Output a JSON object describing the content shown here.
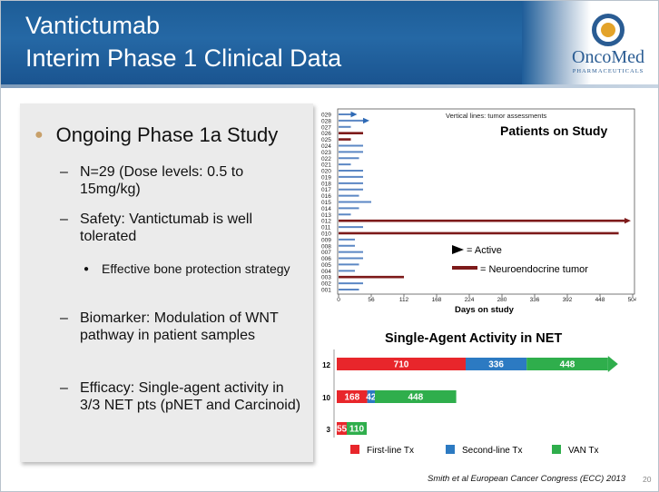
{
  "header": {
    "title_line1": "Vantictumab",
    "title_line2": "Interim Phase 1 Clinical Data"
  },
  "logo": {
    "name": "OncoMed",
    "sub": "PHARMACEUTICALS"
  },
  "bullets": {
    "main": "Ongoing Phase 1a Study",
    "n": "N=29 (Dose levels: 0.5 to 15mg/kg)",
    "safety": "Safety: Vantictumab is well tolerated",
    "bone": "Effective bone protection strategy",
    "biomarker": "Biomarker: Modulation of WNT pathway in patient samples",
    "efficacy": "Efficacy: Single-agent activity in 3/3 NET pts (pNET and Carcinoid)"
  },
  "footer": {
    "citation": "Smith et al European Cancer Congress (ECC) 2013",
    "page": "20"
  },
  "colors": {
    "blue_bar": "#5b87c4",
    "neuro_bar": "#7d1a1a",
    "first_line": "#e8262b",
    "second_line": "#2c7ac2",
    "van_tx": "#2fae4c"
  },
  "chart_data": [
    {
      "type": "bar",
      "title": "Patients on Study",
      "annotation": "Vertical lines: tumor assessments",
      "xlabel": "Days on study",
      "xlim": [
        0,
        504
      ],
      "xticks": [
        "0",
        "56",
        "112",
        "168",
        "224",
        "280",
        "336",
        "392",
        "448",
        "504"
      ],
      "categories": [
        "029",
        "028",
        "027",
        "026",
        "025",
        "024",
        "023",
        "022",
        "021",
        "020",
        "019",
        "018",
        "017",
        "016",
        "015",
        "014",
        "013",
        "012",
        "011",
        "010",
        "009",
        "008",
        "007",
        "006",
        "005",
        "004",
        "003",
        "002",
        "001"
      ],
      "values": [
        21,
        42,
        21,
        42,
        21,
        42,
        42,
        35,
        21,
        42,
        42,
        42,
        42,
        35,
        56,
        35,
        21,
        490,
        42,
        480,
        28,
        28,
        42,
        42,
        35,
        28,
        112,
        42,
        35
      ],
      "neuroendocrine": [
        "026",
        "025",
        "012",
        "010",
        "003"
      ],
      "active": [
        "029",
        "028",
        "012"
      ],
      "legend": {
        "active": "= Active",
        "neuro": "= Neuroendocrine tumor"
      }
    },
    {
      "type": "bar",
      "title": "Single-Agent Activity in NET",
      "categories": [
        "12",
        "10",
        "3"
      ],
      "series": [
        {
          "name": "First-line Tx",
          "values": [
            710,
            168,
            55
          ]
        },
        {
          "name": "Second-line Tx",
          "values": [
            336,
            42,
            null
          ]
        },
        {
          "name": "VAN Tx",
          "values": [
            448,
            448,
            110
          ]
        }
      ]
    }
  ]
}
